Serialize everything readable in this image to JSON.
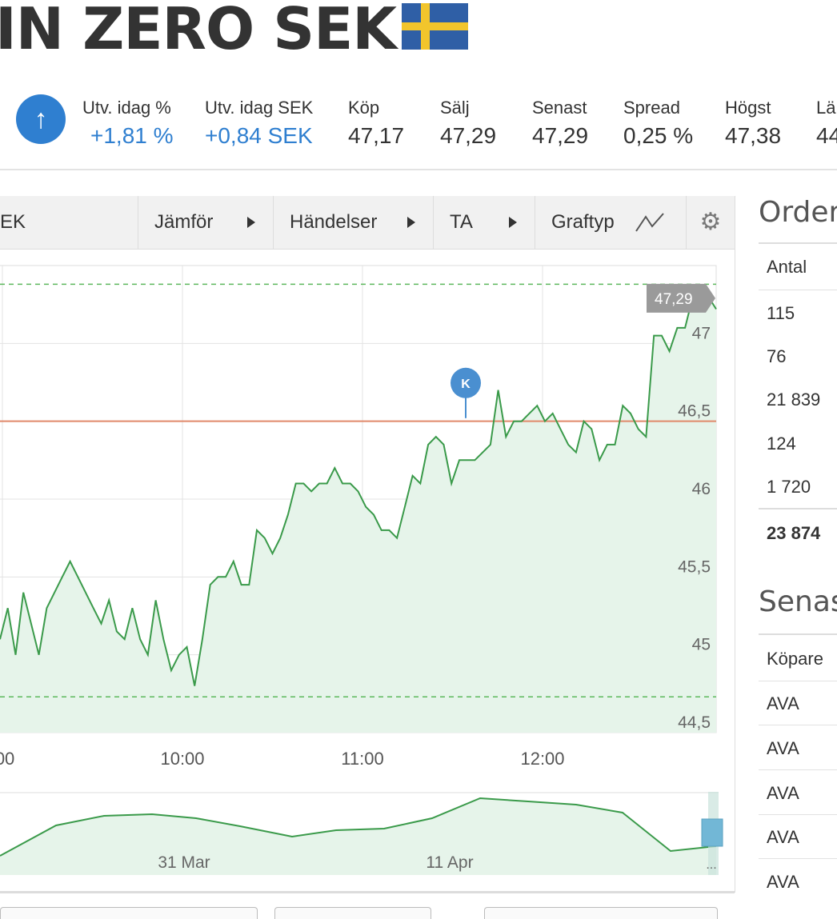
{
  "header": {
    "title": "IN ZERO SEK",
    "flag": "swedish-flag"
  },
  "stats": [
    {
      "label": "Utv. idag %",
      "value": "+1,81 %",
      "color": "#2f7fd0"
    },
    {
      "label": "Utv. idag SEK",
      "value": "+0,84 SEK",
      "color": "#2f7fd0"
    },
    {
      "label": "Köp",
      "value": "47,17"
    },
    {
      "label": "Sälj",
      "value": "47,29"
    },
    {
      "label": "Senast",
      "value": "47,29"
    },
    {
      "label": "Spread",
      "value": "0,25 %"
    },
    {
      "label": "Högst",
      "value": "47,38"
    },
    {
      "label": "Lä",
      "value": "44"
    }
  ],
  "toolbar": {
    "instrument": "EK",
    "compare": "Jämför",
    "events": "Händelser",
    "ta": "TA",
    "charttype": "Graftyp"
  },
  "chart_data": {
    "type": "area",
    "x_ticks": [
      ":00",
      "10:00",
      "11:00",
      "12:00"
    ],
    "y_ticks": [
      "47",
      "46,5",
      "46",
      "45,5",
      "45",
      "44,5"
    ],
    "ylim": [
      44.5,
      47.5
    ],
    "last_price_label": "47,29",
    "reference_line": 46.5,
    "high_dashed": 47.38,
    "low_dashed": 44.73,
    "event_marker": "K",
    "line_color": "#3a9a4a",
    "series": [
      {
        "values": [
          45.1,
          45.3,
          45.0,
          45.4,
          45.2,
          45.0,
          45.3,
          45.4,
          45.5,
          45.6,
          45.5,
          45.4,
          45.3,
          45.2,
          45.35,
          45.15,
          45.1,
          45.3,
          45.1,
          45.0,
          45.35,
          45.1,
          44.9,
          45.0,
          45.05,
          44.8,
          45.1,
          45.45,
          45.5,
          45.5,
          45.6,
          45.45,
          45.45,
          45.8,
          45.75,
          45.65,
          45.75,
          45.9,
          46.1,
          46.1,
          46.05,
          46.1,
          46.1,
          46.2,
          46.1,
          46.1,
          46.05,
          45.95,
          45.9,
          45.8,
          45.8,
          45.75,
          45.95,
          46.15,
          46.1,
          46.35,
          46.4,
          46.35,
          46.1,
          46.25,
          46.25,
          46.25,
          46.3,
          46.35,
          46.7,
          46.4,
          46.5,
          46.5,
          46.55,
          46.6,
          46.5,
          46.55,
          46.45,
          46.35,
          46.3,
          46.5,
          46.45,
          46.25,
          46.35,
          46.35,
          46.6,
          46.55,
          46.45,
          46.4,
          47.05,
          47.05,
          46.95,
          47.1,
          47.1,
          47.3,
          47.3,
          47.3,
          47.22
        ]
      }
    ]
  },
  "navigator": {
    "labels": [
      "31 Mar",
      "11 Apr"
    ],
    "ellipsis": "..."
  },
  "orderbook": {
    "title": "Orderd",
    "column": "Antal",
    "rows": [
      "115",
      "76",
      "21 839",
      "124",
      "1 720"
    ],
    "total": "23 874"
  },
  "latest_trades": {
    "title": "Senas",
    "column": "Köpare",
    "rows": [
      "AVA",
      "AVA",
      "AVA",
      "AVA",
      "AVA"
    ]
  }
}
